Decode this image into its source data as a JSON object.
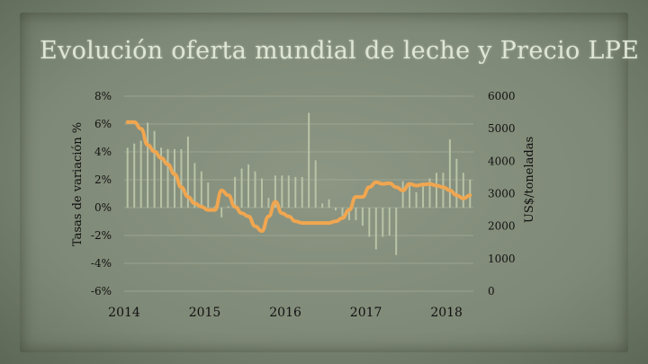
{
  "chart_data": {
    "type": "bar+line",
    "title": "Evolución oferta mundial de leche y Precio LPE",
    "ylabel": "Tasas de variación %",
    "y2label": "US$/toneladas",
    "y_ticks": [
      "8%",
      "6%",
      "4%",
      "2%",
      "0%",
      "-2%",
      "-4%",
      "-6%"
    ],
    "y_tick_values": [
      8,
      6,
      4,
      2,
      0,
      -2,
      -4,
      -6
    ],
    "y2_ticks": [
      "6000",
      "5000",
      "4000",
      "3000",
      "2000",
      "1000",
      "0"
    ],
    "y2_tick_values": [
      6000,
      5000,
      4000,
      3000,
      2000,
      1000,
      0
    ],
    "ylim": [
      -6,
      8
    ],
    "y2lim": [
      0,
      6000
    ],
    "x_ticks": [
      "2014",
      "2015",
      "2016",
      "2017",
      "2018"
    ],
    "x_tick_index": [
      0,
      12,
      24,
      36,
      48
    ],
    "grid": true,
    "colors": {
      "bars": "#b9c3a6",
      "line": "#f0a650",
      "grid": "#a4ad97"
    },
    "series": [
      {
        "kind": "bar",
        "axis": "left",
        "values": [
          4.3,
          4.6,
          4.8,
          6.1,
          5.5,
          4.3,
          4.2,
          4.2,
          4.2,
          5.1,
          3.2,
          2.6,
          1.8,
          0.1,
          -0.7,
          0.1,
          2.2,
          2.8,
          3.1,
          2.6,
          2.1,
          0.7,
          2.3,
          2.3,
          2.3,
          2.2,
          2.2,
          6.8,
          3.4,
          0.3,
          0.6,
          -0.2,
          -0.6,
          -0.9,
          -0.9,
          -1.3,
          -2.1,
          -3.0,
          -2.1,
          -2.0,
          -3.4,
          1.9,
          1.6,
          1.1,
          1.8,
          2.1,
          2.5,
          2.5,
          4.9,
          3.5,
          2.5,
          2.0
        ]
      },
      {
        "kind": "line",
        "axis": "right",
        "values": [
          5200,
          5200,
          5000,
          4500,
          4300,
          4100,
          3900,
          3600,
          3200,
          2900,
          2700,
          2600,
          2500,
          2500,
          3100,
          2950,
          2600,
          2400,
          2300,
          2000,
          1850,
          2300,
          2750,
          2400,
          2300,
          2150,
          2100,
          2100,
          2100,
          2100,
          2100,
          2150,
          2250,
          2500,
          2900,
          2900,
          3200,
          3350,
          3300,
          3320,
          3200,
          3100,
          3300,
          3250,
          3280,
          3300,
          3250,
          3200,
          3100,
          2950,
          2850,
          2950
        ]
      }
    ]
  }
}
